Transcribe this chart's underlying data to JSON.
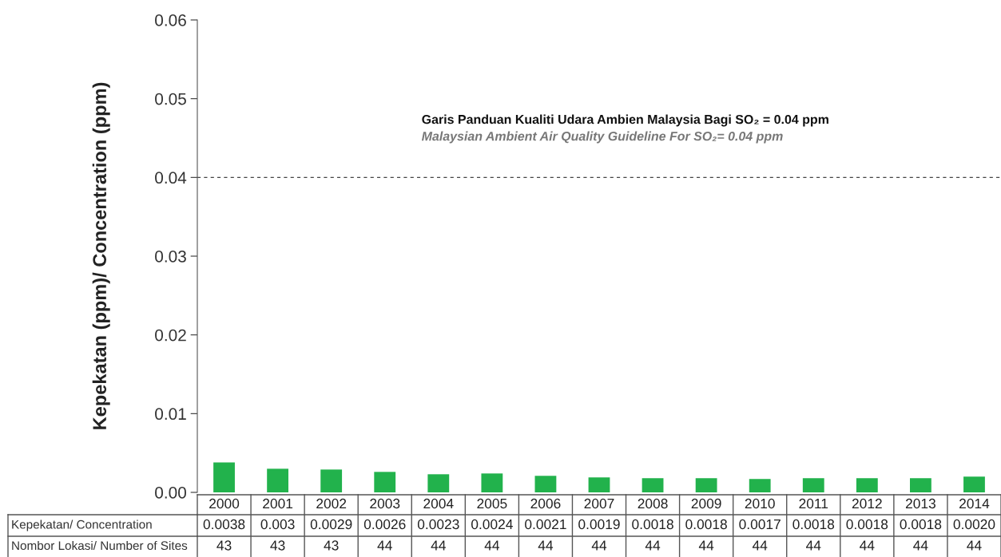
{
  "chart_data": {
    "type": "bar",
    "ylabel": "Kepekatan (ppm)/ Concentration (ppm)",
    "categories": [
      "2000",
      "2001",
      "2002",
      "2003",
      "2004",
      "2005",
      "2006",
      "2007",
      "2008",
      "2009",
      "2010",
      "2011",
      "2012",
      "2013",
      "2014"
    ],
    "values": [
      0.0038,
      0.003,
      0.0029,
      0.0026,
      0.0023,
      0.0024,
      0.0021,
      0.0019,
      0.0018,
      0.0018,
      0.0017,
      0.0018,
      0.0018,
      0.0018,
      0.002
    ],
    "value_labels": [
      "0.0038",
      "0.003",
      "0.0029",
      "0.0026",
      "0.0023",
      "0.0024",
      "0.0021",
      "0.0019",
      "0.0018",
      "0.0018",
      "0.0017",
      "0.0018",
      "0.0018",
      "0.0018",
      "0.0020"
    ],
    "color": "#22b24c",
    "ylim": [
      0,
      0.06
    ],
    "yticks": [
      {
        "value": 0,
        "label": "0.00"
      },
      {
        "value": 0.01,
        "label": "0.01"
      },
      {
        "value": 0.02,
        "label": "0.02"
      },
      {
        "value": 0.03,
        "label": "0.03"
      },
      {
        "value": 0.04,
        "label": "0.04"
      },
      {
        "value": 0.05,
        "label": "0.05"
      },
      {
        "value": 0.06,
        "label": "0.06"
      }
    ],
    "ref_lines": [
      {
        "axis": "y",
        "value": 0.04,
        "label": "Garis Panduan Kualiti Udara Ambien Malaysia Bagi SO₂ = 0.04 ppm\nMalaysian Ambient Air Quality Guideline For SO₂= 0.04 ppm",
        "color": "#444444",
        "line_style": "dashed"
      }
    ],
    "annotations": [
      "Kepekatan/ Concentration",
      "Nombor Lokasi/ Number of Sites",
      "43",
      "43",
      "43",
      "44",
      "44",
      "44",
      "44",
      "44",
      "44",
      "44",
      "44",
      "44",
      "44",
      "44",
      "44"
    ],
    "grid": false
  }
}
